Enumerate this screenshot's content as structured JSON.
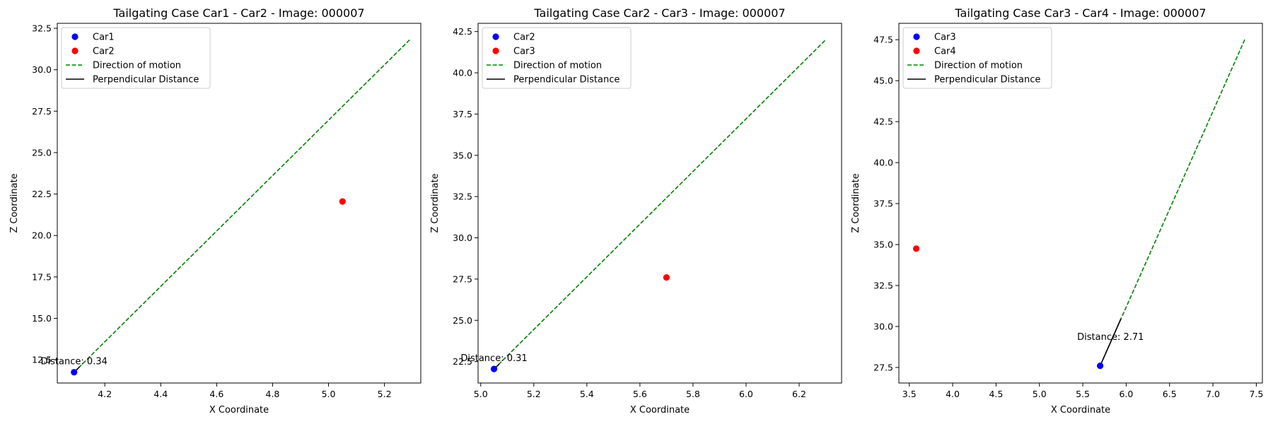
{
  "chart_data": [
    {
      "type": "scatter",
      "title": "Tailgating Case Car1 - Car2 - Image: 000007",
      "xlabel": "X Coordinate",
      "ylabel": "Z Coordinate",
      "xlim": [
        4.03,
        5.33
      ],
      "ylim": [
        11.1,
        32.8
      ],
      "xticks": [
        4.2,
        4.4,
        4.6,
        4.8,
        5.0,
        5.2
      ],
      "xtick_labels": [
        "4.2",
        "4.4",
        "4.6",
        "4.8",
        "5.0",
        "5.2"
      ],
      "yticks": [
        12.5,
        15.0,
        17.5,
        20.0,
        22.5,
        25.0,
        27.5,
        30.0,
        32.5
      ],
      "ytick_labels": [
        "12.5",
        "15.0",
        "17.5",
        "20.0",
        "22.5",
        "25.0",
        "27.5",
        "30.0",
        "32.5"
      ],
      "grid": false,
      "legend_position": "upper-left",
      "legend": [
        "Car1",
        "Car2",
        "Direction of motion",
        "Perpendicular Distance"
      ],
      "points": [
        {
          "name": "Car1",
          "x": 4.09,
          "y": 11.75,
          "color": "#0000ff"
        },
        {
          "name": "Car2",
          "x": 5.05,
          "y": 22.05,
          "color": "#ff0000"
        }
      ],
      "direction_line": {
        "x": [
          4.09,
          5.29
        ],
        "y": [
          11.75,
          31.8
        ],
        "color": "#008000"
      },
      "perpendicular_line": {
        "x": [
          4.09,
          4.11
        ],
        "y": [
          11.75,
          12.08
        ],
        "color": "#000000"
      },
      "annotation": {
        "text": "Distance: 0.34",
        "x": 4.09,
        "y": 12.1
      }
    },
    {
      "type": "scatter",
      "title": "Tailgating Case Car2 - Car3 - Image: 000007",
      "xlabel": "X Coordinate",
      "ylabel": "Z Coordinate",
      "xlim": [
        4.99,
        6.36
      ],
      "ylim": [
        21.2,
        43.0
      ],
      "xticks": [
        5.0,
        5.2,
        5.4,
        5.6,
        5.8,
        6.0,
        6.2
      ],
      "xtick_labels": [
        "5.0",
        "5.2",
        "5.4",
        "5.6",
        "5.8",
        "6.0",
        "6.2"
      ],
      "yticks": [
        22.5,
        25.0,
        27.5,
        30.0,
        32.5,
        35.0,
        37.5,
        40.0,
        42.5
      ],
      "ytick_labels": [
        "22.5",
        "25.0",
        "27.5",
        "30.0",
        "32.5",
        "35.0",
        "37.5",
        "40.0",
        "42.5"
      ],
      "grid": false,
      "legend_position": "upper-left",
      "legend": [
        "Car2",
        "Car3",
        "Direction of motion",
        "Perpendicular Distance"
      ],
      "points": [
        {
          "name": "Car2",
          "x": 5.05,
          "y": 22.05,
          "color": "#0000ff"
        },
        {
          "name": "Car3",
          "x": 5.7,
          "y": 27.6,
          "color": "#ff0000"
        }
      ],
      "direction_line": {
        "x": [
          5.05,
          6.3
        ],
        "y": [
          22.05,
          42.0
        ],
        "color": "#008000"
      },
      "perpendicular_line": {
        "x": [
          5.05,
          5.07
        ],
        "y": [
          22.05,
          22.35
        ],
        "color": "#000000"
      },
      "annotation": {
        "text": "Distance: 0.31",
        "x": 5.05,
        "y": 22.4
      }
    },
    {
      "type": "scatter",
      "title": "Tailgating Case Car3 - Car4 - Image: 000007",
      "xlabel": "X Coordinate",
      "ylabel": "Z Coordinate",
      "xlim": [
        3.38,
        7.57
      ],
      "ylim": [
        26.55,
        48.5
      ],
      "xticks": [
        3.5,
        4.0,
        4.5,
        5.0,
        5.5,
        6.0,
        6.5,
        7.0,
        7.5
      ],
      "xtick_labels": [
        "3.5",
        "4.0",
        "4.5",
        "5.0",
        "5.5",
        "6.0",
        "6.5",
        "7.0",
        "7.5"
      ],
      "yticks": [
        27.5,
        30.0,
        32.5,
        35.0,
        37.5,
        40.0,
        42.5,
        45.0,
        47.5
      ],
      "ytick_labels": [
        "27.5",
        "30.0",
        "32.5",
        "35.0",
        "37.5",
        "40.0",
        "42.5",
        "45.0",
        "47.5"
      ],
      "grid": false,
      "legend_position": "upper-left",
      "legend": [
        "Car3",
        "Car4",
        "Direction of motion",
        "Perpendicular Distance"
      ],
      "points": [
        {
          "name": "Car3",
          "x": 5.7,
          "y": 27.6,
          "color": "#0000ff"
        },
        {
          "name": "Car4",
          "x": 3.58,
          "y": 34.75,
          "color": "#ff0000"
        }
      ],
      "direction_line": {
        "x": [
          5.7,
          7.37
        ],
        "y": [
          27.6,
          47.55
        ],
        "color": "#008000"
      },
      "perpendicular_line": {
        "x": [
          5.7,
          5.94
        ],
        "y": [
          27.6,
          30.48
        ],
        "color": "#000000"
      },
      "annotation": {
        "text": "Distance: 2.71",
        "x": 5.82,
        "y": 29.05
      }
    }
  ]
}
